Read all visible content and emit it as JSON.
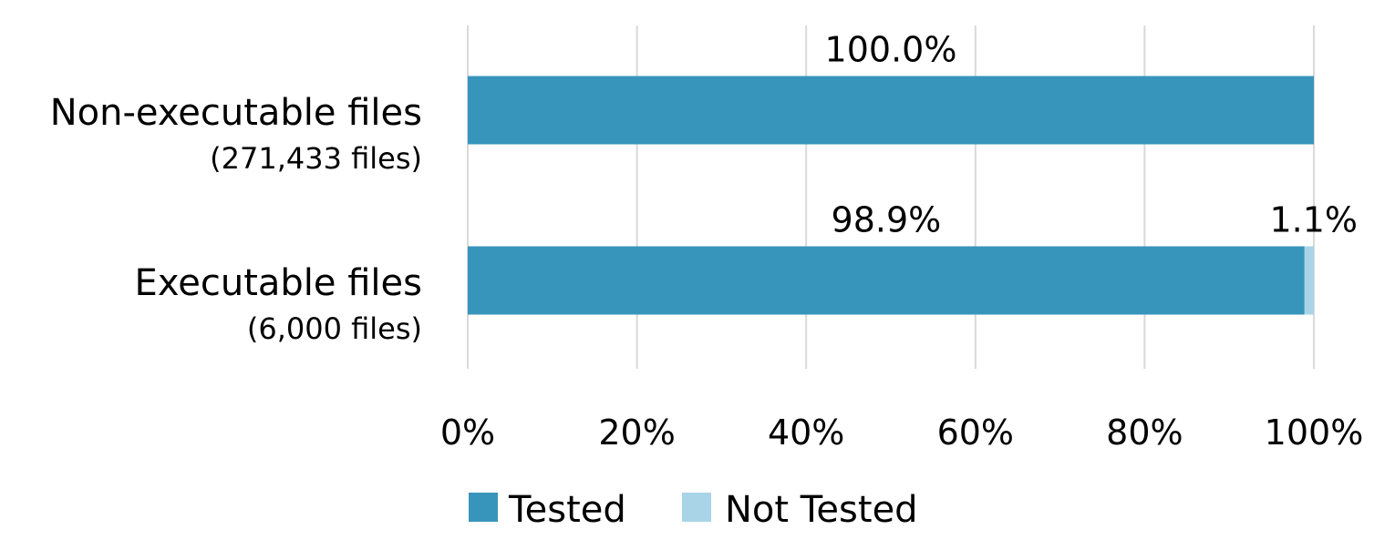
{
  "chart_data": {
    "type": "bar",
    "orientation": "horizontal",
    "stacked": true,
    "categories": [
      {
        "label": "Non-executable files",
        "sublabel": "(271,433 files)"
      },
      {
        "label": "Executable files",
        "sublabel": "(6,000 files)"
      }
    ],
    "series": [
      {
        "name": "Tested",
        "color": "#3795bb",
        "values": [
          100.0,
          98.9
        ],
        "labels": [
          "100.0%",
          "98.9%"
        ]
      },
      {
        "name": "Not Tested",
        "color": "#a9d4e7",
        "values": [
          0.0,
          1.1
        ],
        "labels": [
          "",
          "1.1%"
        ]
      }
    ],
    "xlim": [
      0,
      100
    ],
    "xticks": [
      0,
      20,
      40,
      60,
      80,
      100
    ],
    "xtick_labels": [
      "0%",
      "20%",
      "40%",
      "60%",
      "80%",
      "100%"
    ],
    "grid": true,
    "legend_position": "bottom"
  }
}
